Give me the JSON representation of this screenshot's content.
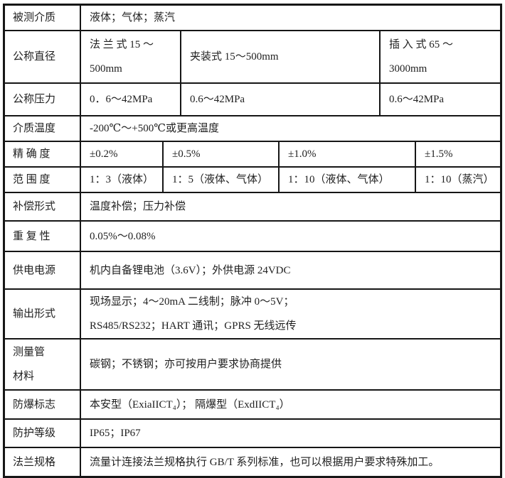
{
  "table": {
    "rows": [
      {
        "label": "被测介质",
        "cells": [
          {
            "text": "液体；气体；蒸汽"
          }
        ]
      },
      {
        "label": "公称直径",
        "cells": [
          {
            "text": "法 兰 式  15 ～\n500mm"
          },
          {
            "text": "夹装式 15～500mm"
          },
          {
            "text": "插 入 式  65 ～\n3000mm"
          }
        ]
      },
      {
        "label": "公称压力",
        "cells": [
          {
            "text": "0．6～42MPa"
          },
          {
            "text": "0.6～42MPa"
          },
          {
            "text": "0.6～42MPa"
          }
        ]
      },
      {
        "label": "介质温度",
        "cells": [
          {
            "text": "-200℃～+500℃或更高温度"
          }
        ]
      },
      {
        "label": "精 确 度",
        "cells": [
          {
            "text": "±0.2%"
          },
          {
            "text": "±0.5%"
          },
          {
            "text": "±1.0%"
          },
          {
            "text": "±1.5%"
          }
        ]
      },
      {
        "label": "范 围 度",
        "cells": [
          {
            "text": "1：3（液体）"
          },
          {
            "text": "1：5（液体、气体）"
          },
          {
            "text": "1：10（液体、气体）"
          },
          {
            "text": "1：10（蒸汽）"
          }
        ]
      },
      {
        "label": "补偿形式",
        "cells": [
          {
            "text": "温度补偿；压力补偿"
          }
        ]
      },
      {
        "label": "重 复 性",
        "cells": [
          {
            "text": "0.05%～0.08%"
          }
        ]
      },
      {
        "label": "供电电源",
        "cells": [
          {
            "text": "机内自备锂电池（3.6V）；外供电源 24VDC"
          }
        ]
      },
      {
        "label": "输出形式",
        "cells": [
          {
            "text": "现场显示；4～20mA 二线制；脉冲 0～5V；\nRS485/RS232；HART 通讯；GPRS 无线远传"
          }
        ]
      },
      {
        "label": "测量管\n材料",
        "cells": [
          {
            "text": "碳钢；不锈钢；亦可按用户要求协商提供"
          }
        ]
      },
      {
        "label": "防爆标志",
        "cells": [
          {
            "text": "本安型（ExiaIICT₄）； 隔爆型（ExdIICT₄）"
          }
        ]
      },
      {
        "label": "防护等级",
        "cells": [
          {
            "text": "IP65；IP67"
          }
        ]
      },
      {
        "label": "法兰规格",
        "cells": [
          {
            "text": "流量计连接法兰规格执行 GB/T 系列标准，也可以根据用户要求特殊加工。"
          }
        ]
      }
    ]
  },
  "colors": {
    "border": "#161616",
    "text": "#1f1f1f",
    "background": "#ffffff"
  }
}
